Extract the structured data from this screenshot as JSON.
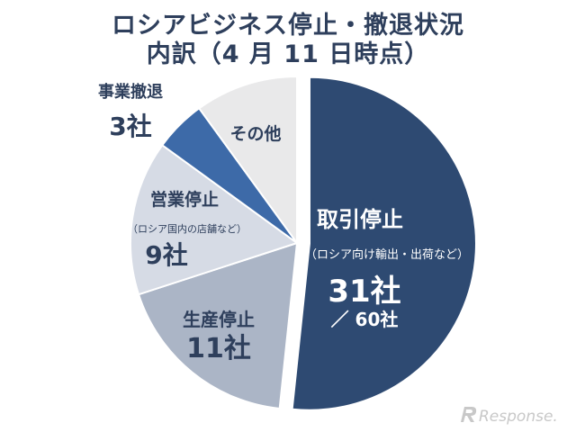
{
  "title": {
    "line1": "ロシアビジネス停止・撤退状況",
    "line2": "内訳（4 月 11 日時点）"
  },
  "chart_data": {
    "type": "pie",
    "title": "ロシアビジネス停止・撤退状況 内訳（4 月 11 日時点）",
    "total": 60,
    "total_label": "／ 60社",
    "unit": "社",
    "slices": [
      {
        "name": "取引停止",
        "note": "（ロシア向け輸出・出荷など）",
        "value": 31,
        "value_label": "31社",
        "color": "#2e4a72",
        "exploded": true
      },
      {
        "name": "生産停止",
        "note": "",
        "value": 11,
        "value_label": "11社",
        "color": "#abb5c6",
        "exploded": false
      },
      {
        "name": "営業停止",
        "note": "（ロシア国内の店舗など）",
        "value": 9,
        "value_label": "9社",
        "color": "#d6dbe5",
        "exploded": false
      },
      {
        "name": "事業撤退",
        "note": "",
        "value": 3,
        "value_label": "3社",
        "color": "#3d6aa8",
        "exploded": false
      },
      {
        "name": "その他",
        "note": "",
        "value": 6,
        "value_label": "",
        "color": "#e9e9ea",
        "exploded": false
      }
    ]
  },
  "watermark": {
    "text": "Response."
  }
}
